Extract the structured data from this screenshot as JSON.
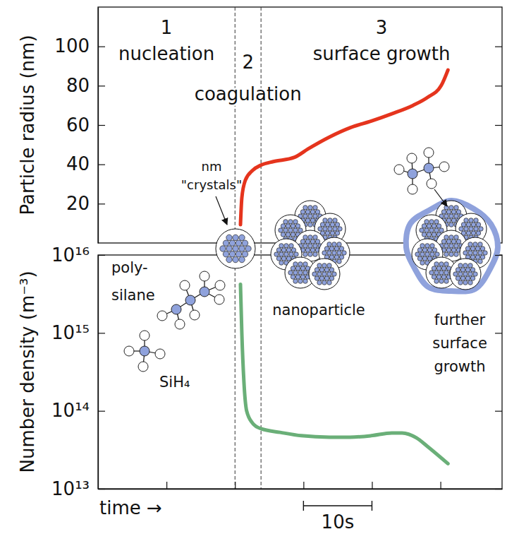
{
  "chart_data": [
    {
      "type": "line",
      "ylabel": "Particle radius (nm)",
      "xlim": [
        0,
        59
      ],
      "ylim": [
        0,
        120
      ],
      "yticks": [
        20,
        40,
        60,
        80,
        100
      ],
      "grid": false,
      "tick_labels": "y",
      "x": [
        20.8,
        21.0,
        21.5,
        22.6,
        23.8,
        25.6,
        28.7,
        30.7,
        33.8,
        36.8,
        39.9,
        42.9,
        46.0,
        48.1,
        50.1,
        51.1
      ],
      "series": [
        {
          "color": "#e5341d",
          "values": [
            9.3,
            22.9,
            31.8,
            37.0,
            39.6,
            41.4,
            43.6,
            47.9,
            53.9,
            58.6,
            62.0,
            65.7,
            70.0,
            74.0,
            80.0,
            88.0
          ]
        }
      ],
      "phases": [
        {
          "number": "1",
          "label": "nucleation",
          "xlim": [
            0,
            20
          ]
        },
        {
          "number": "2",
          "label": "coagulation",
          "xlim": [
            20,
            23.8
          ]
        },
        {
          "number": "3",
          "label": "surface growth",
          "xlim": [
            23.8,
            59
          ]
        }
      ],
      "annotations": [
        {
          "lines": [
            "nm",
            "\"crystals\""
          ]
        },
        {
          "lines": [
            "nanoparticle"
          ]
        },
        {
          "lines": [
            "further",
            "surface",
            "growth"
          ]
        }
      ]
    },
    {
      "type": "line",
      "ylabel": "Number density (m⁻³)",
      "xlabel": "time →",
      "log": "y",
      "xlim": [
        0,
        59
      ],
      "xticks": [
        10,
        20,
        30,
        40,
        50
      ],
      "ylim": [
        10000000000000.0,
        1e+16
      ],
      "yticks": [
        {
          "value": 10000000000000.0,
          "label": "10¹³"
        },
        {
          "value": 100000000000000.0,
          "label": "10¹⁴"
        },
        {
          "value": 1000000000000000.0,
          "label": "10¹⁵"
        },
        {
          "value": 1e+16,
          "label": "10¹⁶"
        }
      ],
      "grid": false,
      "tick_labels": "y",
      "x": [
        20.8,
        21.0,
        21.3,
        21.7,
        22.6,
        23.8,
        26.6,
        29.7,
        33.8,
        36.8,
        39.9,
        42.9,
        44.4,
        46.5,
        48.1,
        51.1
      ],
      "series": [
        {
          "color": "#6aaf78",
          "values": [
            4200000000000000.0,
            1000000000000000.0,
            240000000000000.0,
            100000000000000.0,
            69000000000000.0,
            59000000000000.0,
            53000000000000.0,
            48000000000000.0,
            46000000000000.0,
            46000000000000.0,
            48000000000000.0,
            52000000000000.0,
            52000000000000.0,
            45000000000000.0,
            35000000000000.0,
            21000000000000.0
          ]
        }
      ],
      "scale_bar": {
        "x": [
          30,
          40
        ],
        "label": "10s"
      },
      "annotations": [
        {
          "lines": [
            "poly-",
            "silane"
          ]
        },
        {
          "lines": [
            "SiH₄"
          ]
        }
      ]
    }
  ]
}
